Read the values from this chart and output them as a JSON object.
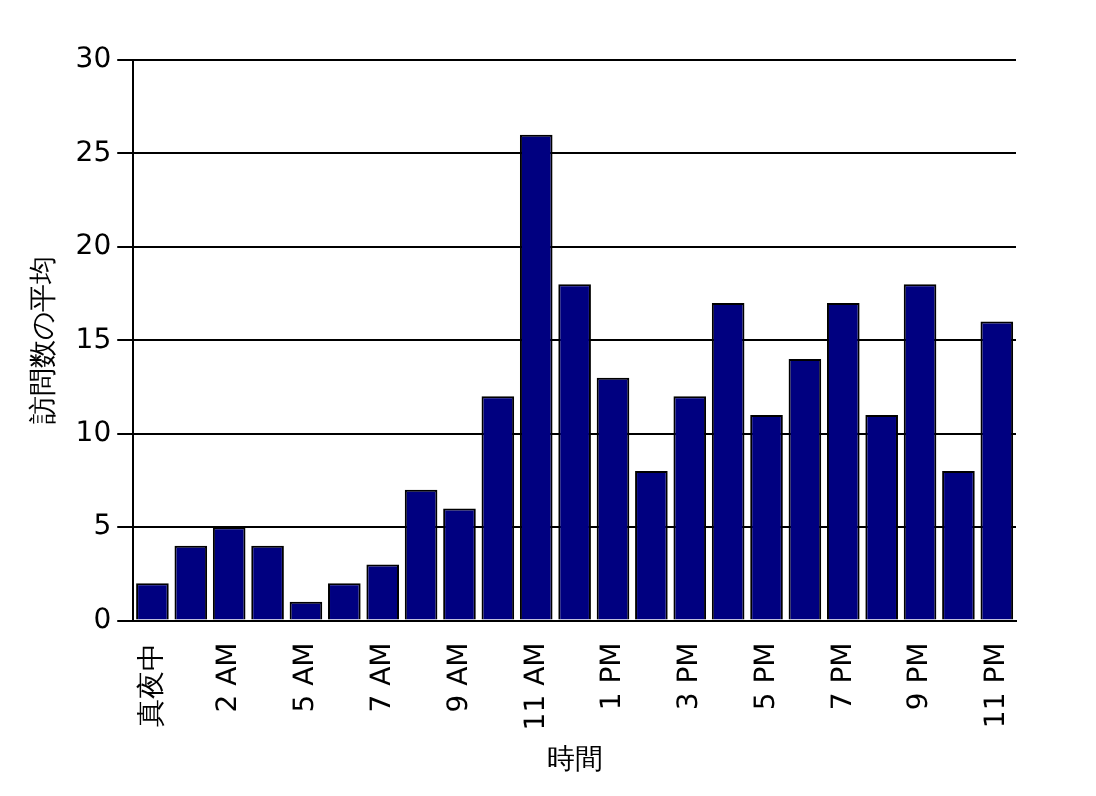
{
  "chart_data": {
    "type": "bar",
    "xlabel": "時間",
    "ylabel": "訪問数の平均",
    "categories": [
      "真夜中",
      null,
      "2 AM",
      null,
      "5 AM",
      null,
      "7 AM",
      null,
      "9 AM",
      null,
      "11 AM",
      null,
      "1 PM",
      null,
      "3 PM",
      null,
      "5 PM",
      null,
      "7 PM",
      null,
      "9 PM",
      null,
      "11 PM"
    ],
    "values": [
      2,
      4,
      5,
      4,
      1,
      2,
      3,
      7,
      6,
      12,
      26,
      18,
      13,
      8,
      12,
      17,
      11,
      14,
      17,
      11,
      18,
      8,
      16
    ],
    "color": "#000080",
    "ylim": [
      0,
      30
    ],
    "yticks": [
      0,
      5,
      10,
      15,
      20,
      25,
      30
    ],
    "grid": "y"
  }
}
